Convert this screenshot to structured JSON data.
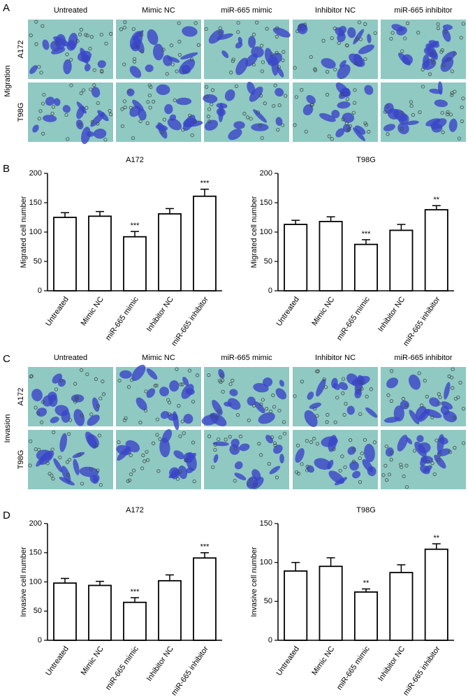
{
  "panel_labels": [
    "A",
    "B",
    "C",
    "D"
  ],
  "image_panels": [
    {
      "section_label": "Migration",
      "columns": [
        "Untreated",
        "Mimic NC",
        "miR-665 mimic",
        "Inhibitor NC",
        "miR-665 inhibitor"
      ],
      "rows": [
        "A172",
        "T98G"
      ]
    },
    {
      "section_label": "Invasion",
      "columns": [
        "Untreated",
        "Mimic NC",
        "miR-665 mimic",
        "Inhibitor NC",
        "miR-665 inhibitor"
      ],
      "rows": [
        "A172",
        "T98G"
      ]
    }
  ],
  "chart_data": [
    {
      "type": "bar",
      "title": "A172",
      "y_label": "Migrated cell number",
      "categories": [
        "Untreated",
        "Mimic NC",
        "miR-665 mimic",
        "Inhibitor NC",
        "miR-665 inhibitor"
      ],
      "values": [
        125,
        127,
        92,
        131,
        161
      ],
      "errors": [
        8,
        8,
        9,
        9,
        12
      ],
      "annotations": [
        null,
        null,
        "***",
        null,
        "***"
      ],
      "ylim": [
        0,
        200
      ],
      "yticks": [
        0,
        50,
        100,
        150,
        200
      ],
      "color": "#ffffff"
    },
    {
      "type": "bar",
      "title": "T98G",
      "y_label": "Migrated cell number",
      "categories": [
        "Untreated",
        "Mimic NC",
        "miR-665 mimic",
        "Inhibitor NC",
        "miR-665 inhibitor"
      ],
      "values": [
        113,
        118,
        79,
        103,
        138
      ],
      "errors": [
        7,
        8,
        8,
        10,
        7
      ],
      "annotations": [
        null,
        null,
        "***",
        null,
        "**"
      ],
      "ylim": [
        0,
        200
      ],
      "yticks": [
        0,
        50,
        100,
        150,
        200
      ],
      "color": "#ffffff"
    },
    {
      "type": "bar",
      "title": "A172",
      "y_label": "Invasive cell number",
      "categories": [
        "Untreated",
        "Mimic NC",
        "miR-665 mimic",
        "Inhibitor NC",
        "miR-665 inhibitor"
      ],
      "values": [
        98,
        94,
        65,
        102,
        141
      ],
      "errors": [
        8,
        7,
        8,
        10,
        9
      ],
      "annotations": [
        null,
        null,
        "***",
        null,
        "***"
      ],
      "ylim": [
        0,
        200
      ],
      "yticks": [
        0,
        50,
        100,
        150,
        200
      ],
      "color": "#ffffff"
    },
    {
      "type": "bar",
      "title": "T98G",
      "y_label": "Invasive cell number",
      "categories": [
        "Untreated",
        "Mimic NC",
        "miR-665 mimic",
        "Inhibitor NC",
        "miR-665 inhibitor"
      ],
      "values": [
        89,
        95,
        62,
        87,
        117
      ],
      "errors": [
        11,
        11,
        4,
        10,
        7
      ],
      "annotations": [
        null,
        null,
        "**",
        null,
        "**"
      ],
      "ylim": [
        0,
        150
      ],
      "yticks": [
        0,
        50,
        100,
        150
      ],
      "color": "#ffffff"
    }
  ]
}
